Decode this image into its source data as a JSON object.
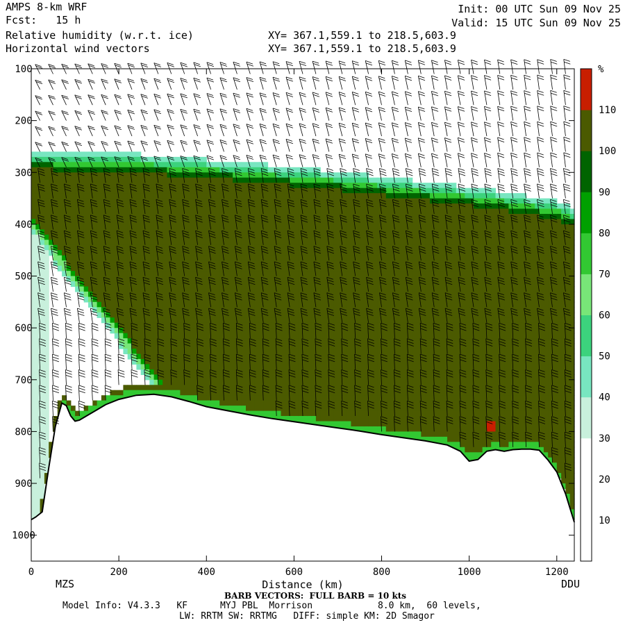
{
  "header": {
    "model_title": "AMPS 8-km WRF",
    "forecast_line": "Fcst:   15 h",
    "field_line": "Relative humidity (w.r.t. ice)",
    "vector_line": "Horizontal wind vectors",
    "init_line": "Init: 00 UTC Sun 09 Nov 25",
    "valid_line": "Valid: 15 UTC Sun 09 Nov 25",
    "xy_line_1": "XY= 367.1,559.1 to 218.5,603.9",
    "xy_line_2": "XY= 367.1,559.1 to 218.5,603.9"
  },
  "footer": {
    "start_station": "MZS",
    "end_station": "DDU",
    "barb_note": "BARB VECTORS:  FULL BARB = 10 kts",
    "model_info": "Model Info: V4.3.3   KF      MYJ PBL  Morrison            8.0 km,  60 levels,",
    "physics_info": "LW: RRTM SW: RRTMG   DIFF: simple KM: 2D Smagor"
  },
  "chart_data": {
    "type": "heatmap",
    "xlabel": "Distance (km)",
    "ylabel": "",
    "xlim": [
      0,
      1240
    ],
    "ylim": [
      100,
      1050
    ],
    "y_inverted": true,
    "x_ticks": [
      0,
      200,
      400,
      600,
      800,
      1000,
      1200
    ],
    "y_ticks": [
      100,
      200,
      300,
      400,
      500,
      600,
      700,
      800,
      900,
      1000
    ],
    "colorbar": {
      "unit": "%",
      "labels": [
        10,
        20,
        30,
        40,
        50,
        60,
        70,
        80,
        90,
        100,
        110
      ],
      "bins": [
        {
          "lo": 0,
          "hi": 10,
          "color": "#ffffff"
        },
        {
          "lo": 10,
          "hi": 20,
          "color": "#ffffff"
        },
        {
          "lo": 20,
          "hi": 30,
          "color": "#ffffff"
        },
        {
          "lo": 30,
          "hi": 40,
          "color": "#c8f0dc"
        },
        {
          "lo": 40,
          "hi": 50,
          "color": "#78e6c0"
        },
        {
          "lo": 50,
          "hi": 60,
          "color": "#3cd27d"
        },
        {
          "lo": 60,
          "hi": 70,
          "color": "#78e678"
        },
        {
          "lo": 70,
          "hi": 80,
          "color": "#32c832"
        },
        {
          "lo": 80,
          "hi": 90,
          "color": "#00a000"
        },
        {
          "lo": 90,
          "hi": 100,
          "color": "#006400"
        },
        {
          "lo": 100,
          "hi": 110,
          "color": "#4b5a00"
        },
        {
          "lo": 110,
          "hi": 120,
          "color": "#c81e00"
        }
      ]
    },
    "terrain": {
      "x": [
        0,
        10,
        25,
        40,
        55,
        70,
        80,
        90,
        100,
        110,
        130,
        150,
        170,
        200,
        240,
        280,
        320,
        360,
        400,
        450,
        500,
        550,
        600,
        650,
        700,
        750,
        800,
        850,
        900,
        950,
        980,
        1000,
        1020,
        1040,
        1060,
        1080,
        1100,
        1120,
        1140,
        1160,
        1180,
        1200,
        1220,
        1240
      ],
      "p": [
        970,
        965,
        955,
        870,
        790,
        745,
        750,
        770,
        780,
        778,
        768,
        758,
        748,
        738,
        730,
        728,
        733,
        742,
        752,
        760,
        768,
        775,
        781,
        787,
        793,
        799,
        806,
        812,
        818,
        826,
        838,
        857,
        854,
        838,
        835,
        838,
        835,
        834,
        834,
        836,
        855,
        878,
        920,
        975
      ]
    },
    "humid_layer": {
      "x": [
        0,
        100,
        200,
        300,
        400,
        500,
        600,
        700,
        800,
        900,
        1000,
        1100,
        1200,
        1240
      ],
      "top_p": [
        268,
        270,
        272,
        278,
        285,
        292,
        300,
        308,
        318,
        328,
        338,
        350,
        365,
        380
      ],
      "description_value_inside": 105
    },
    "barb_columns_km": [
      20,
      50,
      80,
      110,
      140,
      170,
      200,
      230,
      260,
      290,
      320,
      350,
      380,
      410,
      440,
      470,
      500,
      530,
      560,
      590,
      620,
      650,
      680,
      710,
      740,
      770,
      800,
      830,
      860,
      890,
      920,
      950,
      980,
      1010,
      1040,
      1070,
      1100,
      1130,
      1160,
      1190,
      1220
    ],
    "barb_levels_hpa": [
      110,
      140,
      170,
      200,
      230,
      260,
      290,
      320,
      350,
      380,
      410,
      440,
      470,
      500,
      530,
      560,
      590,
      620,
      650,
      680,
      710,
      740,
      770,
      800,
      830,
      860,
      890
    ]
  }
}
